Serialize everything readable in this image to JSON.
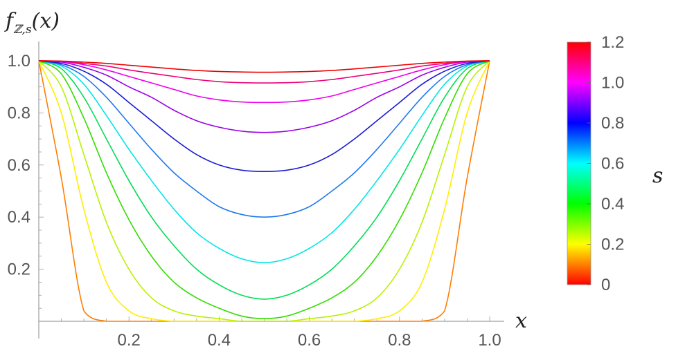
{
  "chart_data": {
    "type": "line",
    "title": "",
    "ylabel": "f_{ℤ,s}(x)",
    "ylabel_parts": {
      "f": "f",
      "sub_z": "ℤ",
      "sub_sep": ",",
      "sub_s": "s",
      "args": "(x)"
    },
    "xlabel": "x",
    "xlim": [
      0,
      1
    ],
    "ylim": [
      0,
      1
    ],
    "x_ticks": [
      0.2,
      0.4,
      0.6,
      0.8,
      1.0
    ],
    "x_tick_labels": [
      "0.2",
      "0.4",
      "0.6",
      "0.8",
      "1.0"
    ],
    "y_ticks": [
      0.2,
      0.4,
      0.6,
      0.8,
      1.0
    ],
    "y_tick_labels": [
      "0.2",
      "0.4",
      "0.6",
      "0.8",
      "1.0"
    ],
    "grid": false,
    "x": [
      0,
      0.05,
      0.1,
      0.15,
      0.2,
      0.25,
      0.3,
      0.35,
      0.4,
      0.45,
      0.5,
      0.55,
      0.6,
      0.65,
      0.7,
      0.75,
      0.8,
      0.85,
      0.9,
      0.95,
      1
    ],
    "series": [
      {
        "s": 0.1,
        "color": "#ff7d00",
        "values": [
          1,
          0.55,
          0.04,
          0,
          0,
          0,
          0,
          0,
          0,
          0,
          0,
          0,
          0,
          0,
          0,
          0,
          0,
          0,
          0.04,
          0.55,
          1
        ]
      },
      {
        "s": 0.2,
        "color": "#ffee00",
        "values": [
          1,
          0.8,
          0.43,
          0.15,
          0.04,
          0.01,
          0,
          0,
          0,
          0,
          0,
          0,
          0,
          0,
          0,
          0.01,
          0.04,
          0.15,
          0.43,
          0.8,
          1
        ]
      },
      {
        "s": 0.3,
        "color": "#b7f200",
        "values": [
          1,
          0.9,
          0.64,
          0.38,
          0.2,
          0.09,
          0.04,
          0.02,
          0.01,
          0,
          0,
          0,
          0.01,
          0.02,
          0.04,
          0.09,
          0.2,
          0.38,
          0.64,
          0.9,
          1
        ]
      },
      {
        "s": 0.4,
        "color": "#33dd00",
        "values": [
          1,
          0.95,
          0.78,
          0.57,
          0.39,
          0.25,
          0.15,
          0.09,
          0.05,
          0.02,
          0.01,
          0.02,
          0.05,
          0.09,
          0.15,
          0.25,
          0.39,
          0.57,
          0.78,
          0.95,
          1
        ]
      },
      {
        "s": 0.5,
        "color": "#00dd55",
        "values": [
          1,
          0.97,
          0.86,
          0.7,
          0.54,
          0.4,
          0.29,
          0.2,
          0.14,
          0.1,
          0.085,
          0.1,
          0.14,
          0.2,
          0.29,
          0.4,
          0.54,
          0.7,
          0.86,
          0.97,
          1
        ]
      },
      {
        "s": 0.6,
        "color": "#00e5e5",
        "values": [
          1,
          0.98,
          0.91,
          0.79,
          0.66,
          0.54,
          0.43,
          0.34,
          0.28,
          0.24,
          0.225,
          0.24,
          0.28,
          0.34,
          0.43,
          0.54,
          0.66,
          0.79,
          0.91,
          0.98,
          1
        ]
      },
      {
        "s": 0.7,
        "color": "#1e78ee",
        "values": [
          1,
          0.985,
          0.94,
          0.86,
          0.76,
          0.66,
          0.57,
          0.5,
          0.44,
          0.41,
          0.4,
          0.41,
          0.44,
          0.5,
          0.57,
          0.66,
          0.76,
          0.86,
          0.94,
          0.985,
          1
        ]
      },
      {
        "s": 0.8,
        "color": "#1a1ad4",
        "values": [
          1,
          0.99,
          0.96,
          0.91,
          0.84,
          0.77,
          0.7,
          0.64,
          0.6,
          0.58,
          0.575,
          0.58,
          0.6,
          0.64,
          0.7,
          0.77,
          0.84,
          0.91,
          0.96,
          0.99,
          1
        ]
      },
      {
        "s": 0.9,
        "color": "#9900e6",
        "values": [
          1,
          0.995,
          0.975,
          0.945,
          0.9,
          0.86,
          0.81,
          0.77,
          0.745,
          0.73,
          0.725,
          0.73,
          0.745,
          0.77,
          0.81,
          0.86,
          0.9,
          0.945,
          0.975,
          0.995,
          1
        ]
      },
      {
        "s": 1.0,
        "color": "#ee00ee",
        "values": [
          1,
          0.997,
          0.985,
          0.965,
          0.94,
          0.915,
          0.89,
          0.865,
          0.85,
          0.842,
          0.84,
          0.842,
          0.85,
          0.865,
          0.89,
          0.915,
          0.94,
          0.965,
          0.985,
          0.997,
          1
        ]
      },
      {
        "s": 1.1,
        "color": "#ee0077",
        "values": [
          1,
          0.998,
          0.99,
          0.98,
          0.965,
          0.952,
          0.94,
          0.928,
          0.92,
          0.916,
          0.915,
          0.916,
          0.92,
          0.928,
          0.94,
          0.952,
          0.965,
          0.98,
          0.99,
          0.998,
          1
        ]
      },
      {
        "s": 1.2,
        "color": "#ee0000",
        "values": [
          1,
          0.999,
          0.995,
          0.99,
          0.983,
          0.976,
          0.969,
          0.963,
          0.959,
          0.957,
          0.956,
          0.957,
          0.959,
          0.963,
          0.969,
          0.976,
          0.983,
          0.99,
          0.995,
          0.999,
          1
        ]
      }
    ],
    "colorbar": {
      "label": "s",
      "range": [
        0,
        1.2
      ],
      "tick_labels": [
        "0",
        "0.2",
        "0.4",
        "0.6",
        "0.8",
        "1.0",
        "1.2"
      ],
      "tick_values": [
        0,
        0.2,
        0.4,
        0.6,
        0.8,
        1.0,
        1.2
      ],
      "stops": [
        {
          "v": 0,
          "color": "#ff0000"
        },
        {
          "v": 0.1,
          "color": "#ff8000"
        },
        {
          "v": 0.2,
          "color": "#ffff00"
        },
        {
          "v": 0.4,
          "color": "#00ff00"
        },
        {
          "v": 0.6,
          "color": "#00ffff"
        },
        {
          "v": 0.8,
          "color": "#0000ff"
        },
        {
          "v": 1.0,
          "color": "#ff00ff"
        },
        {
          "v": 1.2,
          "color": "#ff0000"
        }
      ]
    }
  }
}
